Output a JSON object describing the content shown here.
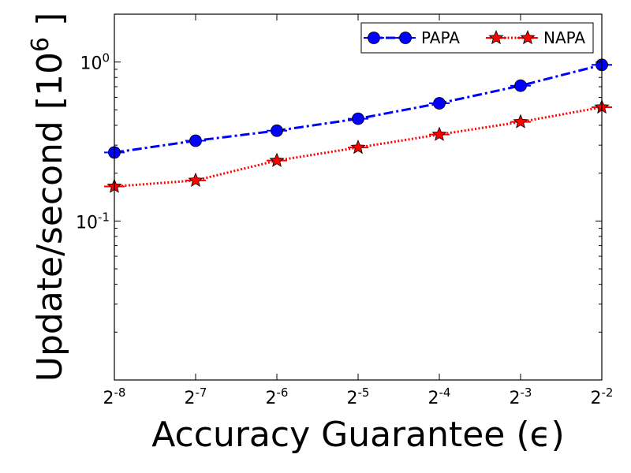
{
  "chart_data": {
    "type": "line",
    "xlabel": "Accuracy Guarantee (ϵ)",
    "ylabel": "Update/second [10",
    "ylabel_exp": "6",
    "ylabel_close": " ]",
    "x": [
      -8,
      -7,
      -6,
      -5,
      -4,
      -3,
      -2
    ],
    "x_tick_labels": [
      {
        "base": "2",
        "exp": "-8"
      },
      {
        "base": "2",
        "exp": "-7"
      },
      {
        "base": "2",
        "exp": "-6"
      },
      {
        "base": "2",
        "exp": "-5"
      },
      {
        "base": "2",
        "exp": "-4"
      },
      {
        "base": "2",
        "exp": "-3"
      },
      {
        "base": "2",
        "exp": "-2"
      }
    ],
    "y_scale": "log",
    "ylim": [
      0.01,
      2
    ],
    "y_tick_labels": [
      {
        "value": 0.1,
        "base": "10",
        "exp": "-1"
      },
      {
        "value": 1,
        "base": "10",
        "exp": "0"
      }
    ],
    "legend_position": "top-right",
    "series": [
      {
        "name": "PAPA",
        "color": "#0000ff",
        "marker": "circle",
        "line_style": "dash-dot",
        "values": [
          0.27,
          0.32,
          0.37,
          0.44,
          0.55,
          0.71,
          0.96
        ]
      },
      {
        "name": "NAPA",
        "color": "#ff0000",
        "marker": "star",
        "line_style": "dotted",
        "values": [
          0.165,
          0.18,
          0.24,
          0.29,
          0.35,
          0.42,
          0.52
        ]
      }
    ]
  }
}
